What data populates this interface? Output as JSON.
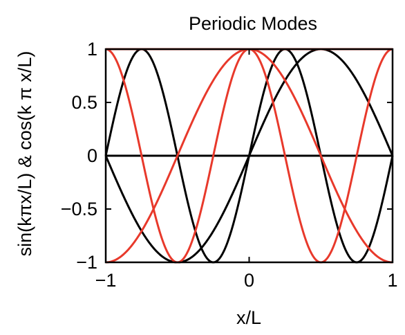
{
  "chart_data": {
    "type": "line",
    "title": "Periodic Modes",
    "xlabel": "x/L",
    "ylabel": "sin(kπx/L) & cos(k π x/L)",
    "xlim": [
      -1,
      1
    ],
    "ylim": [
      -1,
      1
    ],
    "xticks": [
      -1,
      0,
      1
    ],
    "xtick_labels": [
      "−1",
      "0",
      "1"
    ],
    "yticks": [
      -1,
      -0.5,
      0,
      0.5,
      1
    ],
    "ytick_labels": [
      "−1",
      "−0.5",
      "0",
      "0.5",
      "1"
    ],
    "grid": false,
    "legend": "none",
    "series": [
      {
        "function": "sin",
        "k": 0,
        "color": "#000000"
      },
      {
        "function": "sin",
        "k": 1,
        "color": "#000000"
      },
      {
        "function": "sin",
        "k": 2,
        "color": "#000000"
      },
      {
        "function": "cos",
        "k": 0,
        "color": "#e8392b"
      },
      {
        "function": "cos",
        "k": 1,
        "color": "#e8392b"
      },
      {
        "function": "cos",
        "k": 2,
        "color": "#e8392b"
      }
    ]
  }
}
